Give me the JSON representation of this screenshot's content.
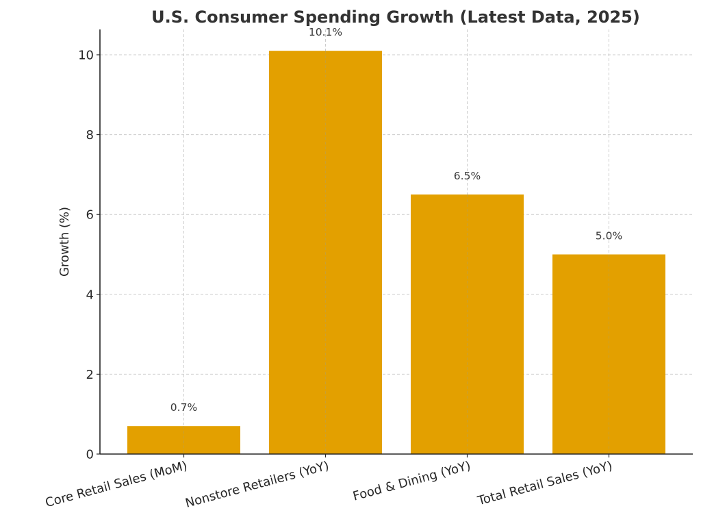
{
  "chart_data": {
    "type": "bar",
    "title": "U.S. Consumer Spending Growth (Latest Data, 2025)",
    "xlabel": "",
    "ylabel": "Growth (%)",
    "categories": [
      "Core Retail Sales (MoM)",
      "Nonstore Retailers (YoY)",
      "Food & Dining (YoY)",
      "Total Retail Sales (YoY)"
    ],
    "values": [
      0.7,
      10.1,
      6.5,
      5.0
    ],
    "data_labels": [
      "0.7%",
      "10.1%",
      "6.5%",
      "5.0%"
    ],
    "ylim": [
      0,
      10.6
    ],
    "yticks": [
      0,
      2,
      4,
      6,
      8,
      10
    ],
    "ytick_labels": [
      "0",
      "2",
      "4",
      "6",
      "8",
      "10"
    ],
    "grid": true,
    "bar_color": "#E3A000",
    "legend": "none"
  }
}
